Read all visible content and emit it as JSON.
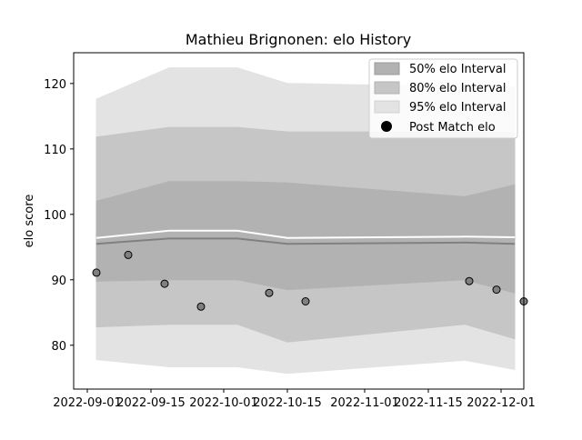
{
  "chart_data": {
    "type": "area",
    "title": "Mathieu Brignonen: elo History",
    "xlabel": "",
    "ylabel": "elo score",
    "xlim": [
      "2022-08-29",
      "2022-12-06"
    ],
    "ylim": [
      73.3,
      124.7
    ],
    "x_ticks": [
      "2022-09-01",
      "2022-09-15",
      "2022-10-01",
      "2022-10-15",
      "2022-11-01",
      "2022-11-15",
      "2022-12-01"
    ],
    "y_ticks": [
      80,
      90,
      100,
      110,
      120
    ],
    "grid": false,
    "legend_position": "top-right",
    "legend": {
      "band50": "50% elo Interval",
      "band80": "80% elo Interval",
      "band95": "95% elo Interval",
      "points": "Post Match elo"
    },
    "x": [
      "2022-09-03",
      "2022-09-19",
      "2022-10-04",
      "2022-10-15",
      "2022-11-23",
      "2022-12-04"
    ],
    "mean": [
      95.5,
      96.3,
      96.3,
      95.5,
      95.7,
      95.5
    ],
    "upper_line": [
      96.4,
      97.5,
      97.5,
      96.4,
      96.6,
      96.5
    ],
    "band50": {
      "low": [
        89.8,
        90.0,
        90.0,
        88.5,
        90.0,
        88.0
      ],
      "high": [
        102.0,
        105.0,
        105.0,
        104.8,
        102.7,
        104.5
      ]
    },
    "band80": {
      "low": [
        82.8,
        83.2,
        83.2,
        80.5,
        83.2,
        81.0
      ],
      "high": [
        111.8,
        113.3,
        113.3,
        112.6,
        112.6,
        112.5
      ]
    },
    "band95": {
      "low": [
        77.8,
        76.7,
        76.7,
        75.7,
        77.7,
        76.3
      ],
      "high": [
        117.6,
        122.4,
        122.4,
        120.0,
        119.5,
        119.5
      ]
    },
    "points": [
      {
        "x": "2022-09-03",
        "y": 91.1
      },
      {
        "x": "2022-09-10",
        "y": 93.8
      },
      {
        "x": "2022-09-18",
        "y": 89.4
      },
      {
        "x": "2022-09-26",
        "y": 85.9
      },
      {
        "x": "2022-10-11",
        "y": 88.0
      },
      {
        "x": "2022-10-19",
        "y": 86.7
      },
      {
        "x": "2022-11-24",
        "y": 89.8
      },
      {
        "x": "2022-11-30",
        "y": 88.5
      },
      {
        "x": "2022-12-06",
        "y": 86.7
      }
    ],
    "colors": {
      "band50": "#b2b2b2",
      "band80": "#c6c6c6",
      "band95": "#e3e3e3",
      "mean_line": "#808080",
      "upper_line": "#ffffff",
      "point_fill": "#808080",
      "point_edge": "#000000"
    }
  }
}
